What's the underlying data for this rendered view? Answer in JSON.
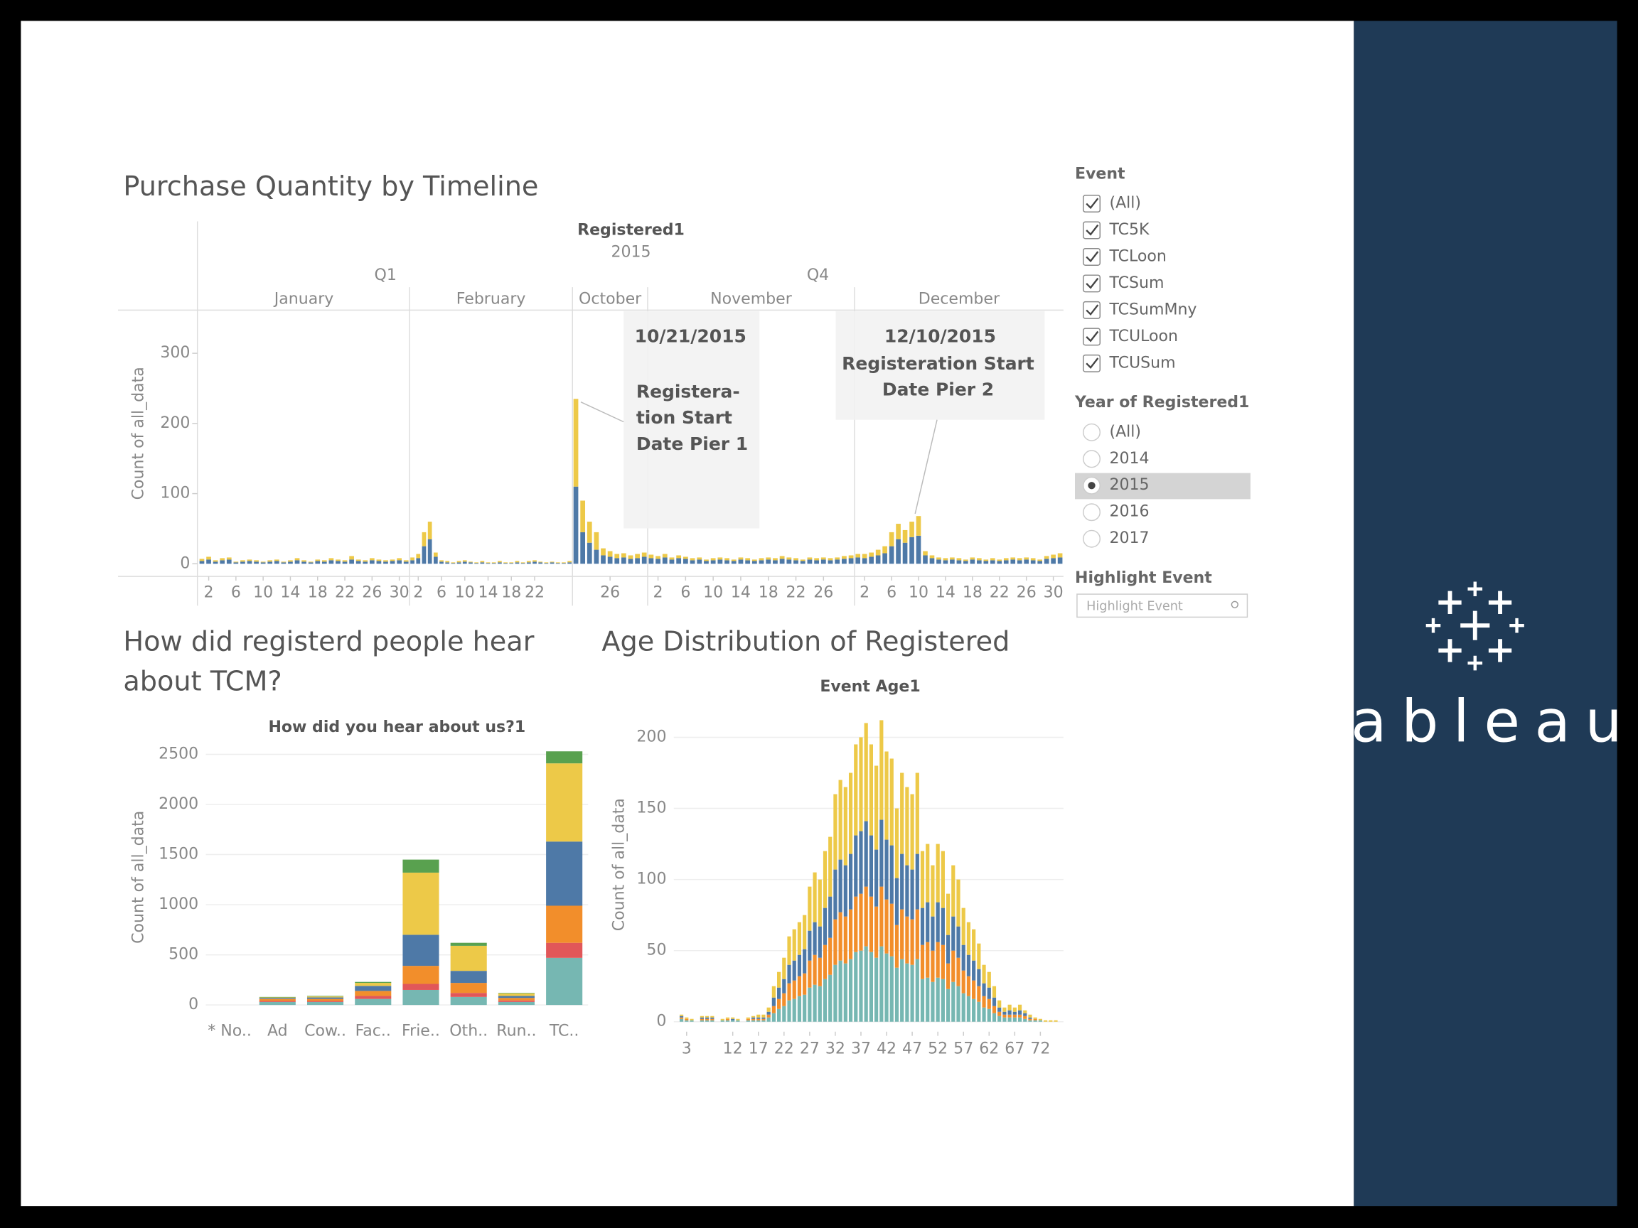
{
  "chart_data": [
    {
      "type": "timeline-bar",
      "title": "Purchase Quantity by Timeline",
      "header": "Registered1",
      "year": "2015",
      "y_label": "Count of all_data",
      "ylim": [
        -18,
        360
      ],
      "yticks": [
        0,
        100,
        200,
        300
      ],
      "colors": [
        "#4e79a7",
        "#edc948"
      ],
      "quarters": [
        {
          "name": "Q1",
          "months": [
            {
              "name": "January",
              "first_day": 1,
              "ticks": [
                2,
                6,
                10,
                14,
                18,
                22,
                26,
                30
              ],
              "stacks": [
                [
                  4,
                  6,
                  3,
                  5,
                  6,
                  2,
                  3,
                  4,
                  3,
                  2,
                  3,
                  4,
                  2,
                  3,
                  5,
                  3,
                  2,
                  4,
                  3,
                  5,
                  4,
                  3,
                  6,
                  4,
                  3,
                  5,
                  4,
                  3,
                  4,
                  5,
                  3
                ],
                [
                  3,
                  4,
                  2,
                  3,
                  3,
                  1,
                  2,
                  2,
                  2,
                  1,
                  2,
                  2,
                  1,
                  2,
                  3,
                  2,
                  1,
                  2,
                  2,
                  3,
                  2,
                  2,
                  5,
                  2,
                  2,
                  3,
                  2,
                  2,
                  2,
                  3,
                  2
                ]
              ]
            },
            {
              "name": "February",
              "first_day": 1,
              "ticks": [
                2,
                6,
                10,
                14,
                18,
                22
              ],
              "stacks": [
                [
                  5,
                  8,
                  25,
                  35,
                  10,
                  3,
                  2,
                  1,
                  2,
                  3,
                  2,
                  1,
                  2,
                  1,
                  1,
                  2,
                  1,
                  1,
                  2,
                  1,
                  2,
                  3,
                  2,
                  1,
                  2,
                  1,
                  1,
                  2
                ],
                [
                  4,
                  6,
                  20,
                  25,
                  6,
                  2,
                  2,
                  1,
                  2,
                  2,
                  1,
                  1,
                  2,
                  1,
                  1,
                  2,
                  1,
                  1,
                  2,
                  1,
                  2,
                  2,
                  1,
                  1,
                  1,
                  1,
                  1,
                  2
                ]
              ]
            }
          ]
        },
        {
          "name": "Q4",
          "months": [
            {
              "name": "October",
              "first_day": 21,
              "ticks": [
                26
              ],
              "stacks": [
                [
                  110,
                  45,
                  30,
                  20,
                  12,
                  10,
                  8,
                  9,
                  7,
                  8,
                  10
                ],
                [
                  125,
                  45,
                  30,
                  25,
                  10,
                  8,
                  6,
                  6,
                  5,
                  6,
                  6
                ]
              ]
            },
            {
              "name": "November",
              "first_day": 1,
              "ticks": [
                2,
                6,
                10,
                14,
                18,
                22,
                26
              ],
              "stacks": [
                [
                  8,
                  7,
                  9,
                  6,
                  8,
                  7,
                  5,
                  6,
                  4,
                  5,
                  6,
                  5,
                  4,
                  6,
                  5,
                  4,
                  5,
                  6,
                  5,
                  7,
                  6,
                  5,
                  4,
                  6,
                  5,
                  6,
                  5,
                  6,
                  7,
                  8
                ],
                [
                  5,
                  4,
                  5,
                  3,
                  4,
                  3,
                  3,
                  3,
                  2,
                  3,
                  3,
                  3,
                  2,
                  3,
                  3,
                  2,
                  3,
                  3,
                  3,
                  4,
                  3,
                  3,
                  2,
                  3,
                  3,
                  3,
                  3,
                  3,
                  4,
                  4
                ]
              ]
            },
            {
              "name": "December",
              "first_day": 1,
              "ticks": [
                2,
                6,
                10,
                14,
                18,
                22,
                26,
                30
              ],
              "stacks": [
                [
                  9,
                  8,
                  10,
                  12,
                  15,
                  25,
                  35,
                  30,
                  38,
                  40,
                  12,
                  8,
                  6,
                  5,
                  6,
                  5,
                  4,
                  6,
                  5,
                  4,
                  5,
                  4,
                  5,
                  6,
                  5,
                  6,
                  5,
                  4,
                  7,
                  8,
                  9
                ],
                [
                  5,
                  6,
                  6,
                  8,
                  10,
                  20,
                  22,
                  18,
                  22,
                  28,
                  6,
                  4,
                  3,
                  3,
                  3,
                  3,
                  2,
                  3,
                  3,
                  2,
                  3,
                  2,
                  3,
                  3,
                  3,
                  3,
                  3,
                  2,
                  4,
                  5,
                  6
                ]
              ]
            }
          ]
        }
      ],
      "annotations": [
        {
          "date": "10/21/2015",
          "lines": [
            "Registera-",
            "tion Start",
            "Date Pier 1"
          ]
        },
        {
          "date": "12/10/2015",
          "lines": [
            "Registeration Start",
            "Date Pier 2"
          ]
        }
      ]
    },
    {
      "type": "stacked-bar",
      "title_lines": [
        "How did registerd people hear",
        "about TCM?"
      ],
      "header": "How did you hear about us?1",
      "y_label": "Count of all_data",
      "ylim": [
        -100,
        2650
      ],
      "yticks": [
        0,
        500,
        1000,
        1500,
        2000,
        2500
      ],
      "grid": true,
      "categories": [
        "* No..",
        "Ad",
        "Cow..",
        "Fac..",
        "Frie..",
        "Oth..",
        "Run..",
        "TC.."
      ],
      "series": [
        {
          "color": "#76b7b2",
          "values": [
            0,
            30,
            30,
            60,
            150,
            80,
            30,
            470
          ]
        },
        {
          "color": "#e15759",
          "values": [
            0,
            10,
            10,
            30,
            60,
            40,
            15,
            150
          ]
        },
        {
          "color": "#f28e2b",
          "values": [
            0,
            20,
            20,
            50,
            180,
            100,
            25,
            370
          ]
        },
        {
          "color": "#4e79a7",
          "values": [
            0,
            10,
            15,
            50,
            310,
            120,
            20,
            640
          ]
        },
        {
          "color": "#edc948",
          "values": [
            0,
            5,
            10,
            30,
            620,
            250,
            25,
            780
          ]
        },
        {
          "color": "#59a14f",
          "values": [
            0,
            5,
            5,
            10,
            130,
            30,
            5,
            120
          ]
        }
      ]
    },
    {
      "type": "stacked-histogram",
      "title": "Age Distribution of Registered",
      "header": "Event Age1",
      "y_label": "Count of all_data",
      "ylim": [
        -7,
        225
      ],
      "yticks": [
        0,
        50,
        100,
        150,
        200
      ],
      "grid": true,
      "xlim": [
        0.5,
        76.5
      ],
      "xticks": [
        3,
        12,
        17,
        22,
        27,
        32,
        37,
        42,
        47,
        52,
        57,
        62,
        67,
        72
      ],
      "x": [
        2,
        3,
        4,
        5,
        6,
        7,
        8,
        9,
        10,
        11,
        12,
        13,
        14,
        15,
        16,
        17,
        18,
        19,
        20,
        21,
        22,
        23,
        24,
        25,
        26,
        27,
        28,
        29,
        30,
        31,
        32,
        33,
        34,
        35,
        36,
        37,
        38,
        39,
        40,
        41,
        42,
        43,
        44,
        45,
        46,
        47,
        48,
        49,
        50,
        51,
        52,
        53,
        54,
        55,
        56,
        57,
        58,
        59,
        60,
        61,
        62,
        63,
        64,
        65,
        66,
        67,
        68,
        69,
        70,
        71,
        72,
        73,
        74,
        75
      ],
      "series": [
        {
          "color": "#76b7b2",
          "values": [
            2,
            1,
            1,
            0,
            1,
            1,
            1,
            0,
            1,
            1,
            1,
            1,
            0,
            1,
            1,
            1,
            1,
            3,
            6,
            9,
            11,
            15,
            16,
            18,
            19,
            24,
            26,
            25,
            30,
            33,
            40,
            43,
            41,
            44,
            49,
            50,
            53,
            49,
            45,
            53,
            48,
            46,
            38,
            44,
            41,
            40,
            44,
            30,
            31,
            28,
            31,
            30,
            23,
            28,
            25,
            20,
            18,
            16,
            14,
            10,
            9,
            6,
            4,
            3,
            3,
            3,
            3,
            2,
            1,
            1,
            1,
            0,
            0,
            0
          ]
        },
        {
          "color": "#f28e2b",
          "values": [
            1,
            1,
            0,
            0,
            1,
            1,
            1,
            0,
            0,
            1,
            0,
            0,
            0,
            1,
            1,
            1,
            1,
            2,
            5,
            7,
            9,
            12,
            13,
            14,
            15,
            19,
            21,
            20,
            24,
            26,
            32,
            34,
            33,
            35,
            39,
            40,
            42,
            39,
            36,
            42,
            38,
            37,
            30,
            35,
            33,
            32,
            35,
            24,
            25,
            22,
            25,
            24,
            18,
            22,
            20,
            16,
            14,
            13,
            11,
            8,
            7,
            5,
            3,
            2,
            2,
            2,
            2,
            2,
            1,
            1,
            0,
            0,
            0,
            0
          ]
        },
        {
          "color": "#4e79a7",
          "values": [
            1,
            0,
            0,
            0,
            1,
            1,
            1,
            0,
            0,
            0,
            1,
            0,
            0,
            0,
            1,
            1,
            1,
            2,
            6,
            8,
            10,
            13,
            14,
            15,
            17,
            21,
            23,
            22,
            26,
            29,
            35,
            37,
            36,
            39,
            43,
            44,
            46,
            43,
            40,
            47,
            42,
            41,
            33,
            39,
            36,
            35,
            39,
            26,
            28,
            24,
            28,
            26,
            20,
            24,
            22,
            18,
            15,
            14,
            12,
            9,
            8,
            6,
            3,
            2,
            3,
            2,
            3,
            2,
            1,
            0,
            0,
            0,
            0,
            0
          ]
        },
        {
          "color": "#edc948",
          "values": [
            1,
            1,
            1,
            0,
            1,
            1,
            1,
            0,
            1,
            1,
            1,
            1,
            0,
            1,
            1,
            2,
            2,
            3,
            8,
            11,
            15,
            20,
            22,
            23,
            24,
            31,
            35,
            33,
            40,
            42,
            53,
            56,
            55,
            57,
            64,
            66,
            69,
            64,
            59,
            70,
            62,
            61,
            49,
            57,
            55,
            53,
            57,
            40,
            41,
            36,
            41,
            40,
            29,
            36,
            33,
            26,
            23,
            22,
            18,
            13,
            11,
            8,
            5,
            3,
            4,
            3,
            4,
            2,
            2,
            1,
            1,
            1,
            1,
            1
          ]
        }
      ]
    }
  ],
  "filters": {
    "event": {
      "title": "Event",
      "items": [
        {
          "label": "(All)",
          "checked": true
        },
        {
          "label": "TC5K",
          "checked": true
        },
        {
          "label": "TCLoon",
          "checked": true
        },
        {
          "label": "TCSum",
          "checked": true
        },
        {
          "label": "TCSumMny",
          "checked": true
        },
        {
          "label": "TCULoon",
          "checked": true
        },
        {
          "label": "TCUSum",
          "checked": true
        }
      ]
    },
    "year": {
      "title": "Year of Registered1",
      "items": [
        {
          "label": "(All)",
          "selected": false
        },
        {
          "label": "2014",
          "selected": false
        },
        {
          "label": "2015",
          "selected": true
        },
        {
          "label": "2016",
          "selected": false
        },
        {
          "label": "2017",
          "selected": false
        }
      ]
    },
    "highlight": {
      "title": "Highlight Event",
      "placeholder": "Highlight Event"
    }
  },
  "logo": "tableau"
}
